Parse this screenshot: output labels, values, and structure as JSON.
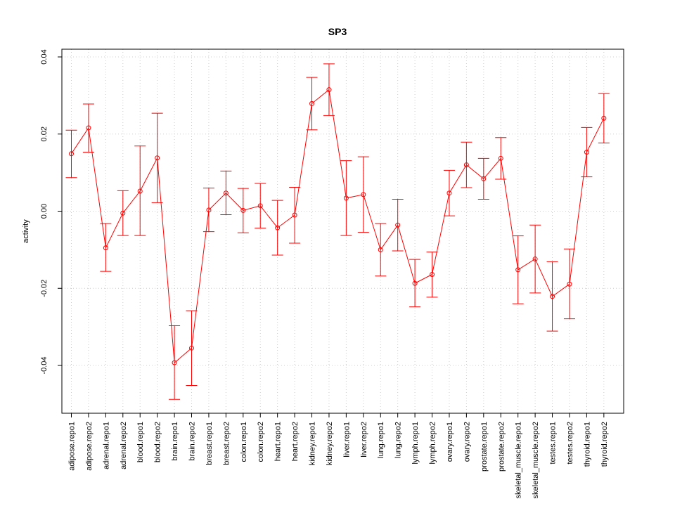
{
  "chart_data": {
    "type": "line",
    "title": "SP3",
    "xlabel": "",
    "ylabel": "activity",
    "ylim": [
      -0.053,
      0.042
    ],
    "y_ticks": [
      -0.04,
      -0.02,
      0.0,
      0.02,
      0.04
    ],
    "y_tick_labels": [
      "-0.04",
      "-0.02",
      "0.00",
      "0.02",
      "0.04"
    ],
    "grid": true,
    "color": "#ff0000",
    "categories": [
      "adipose.repo1",
      "adipose.repo2",
      "adrenal.repo1",
      "adrenal.repo2",
      "blood.repo1",
      "blood.repo2",
      "brain.repo1",
      "brain.repo2",
      "breast.repo1",
      "breast.repo2",
      "colon.repo1",
      "colon.repo2",
      "heart.repo1",
      "heart.repo2",
      "kidney.repo1",
      "kidney.repo2",
      "liver.repo1",
      "liver.repo2",
      "lung.repo1",
      "lung.repo2",
      "lymph.repo1",
      "lymph.repo2",
      "ovary.repo1",
      "ovary.repo2",
      "prostate.repo1",
      "prostate.repo2",
      "skeletal_muscle.repo1",
      "skeletal_muscle.repo2",
      "testes.repo1",
      "testes.repo2",
      "thyroid.repo1",
      "thyroid.repo2"
    ],
    "values": [
      0.0149,
      0.0216,
      -0.0095,
      -0.0005,
      0.0052,
      0.0138,
      -0.0393,
      -0.0355,
      0.0003,
      0.0047,
      0.0002,
      0.0014,
      -0.0043,
      -0.001,
      0.0279,
      0.0315,
      0.0034,
      0.0043,
      -0.01,
      -0.0036,
      -0.0187,
      -0.0164,
      0.0047,
      0.012,
      0.0084,
      0.0137,
      -0.0152,
      -0.0124,
      -0.0221,
      -0.0189,
      0.0153,
      0.0241
    ],
    "upper": [
      0.021,
      0.0278,
      -0.0032,
      0.0053,
      0.0169,
      0.0254,
      -0.0297,
      -0.0258,
      0.006,
      0.0104,
      0.0059,
      0.0072,
      0.0028,
      0.0062,
      0.0347,
      0.0382,
      0.0131,
      0.0141,
      -0.0032,
      0.0031,
      -0.0125,
      -0.0106,
      0.0106,
      0.0179,
      0.0137,
      0.0191,
      -0.0064,
      -0.0036,
      -0.0131,
      -0.0098,
      0.0217,
      0.0305
    ],
    "lower": [
      0.0087,
      0.0153,
      -0.0156,
      -0.0063,
      -0.0063,
      0.0022,
      -0.0488,
      -0.0452,
      -0.0053,
      -0.0009,
      -0.0056,
      -0.0044,
      -0.0114,
      -0.0083,
      0.0211,
      0.0248,
      -0.0063,
      -0.0055,
      -0.0168,
      -0.0103,
      -0.0248,
      -0.0223,
      -0.0012,
      0.0061,
      0.0031,
      0.0083,
      -0.024,
      -0.0212,
      -0.0311,
      -0.0279,
      0.0089,
      0.0177
    ]
  }
}
